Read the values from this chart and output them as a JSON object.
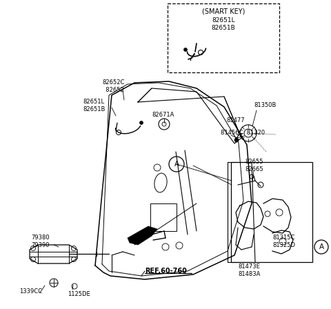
{
  "background_color": "#ffffff",
  "figsize": [
    4.8,
    4.48
  ],
  "dpi": 100,
  "labels": {
    "smart_key_box_title": "(SMART KEY)",
    "smart_key_parts": "82651L\n82651B",
    "part_82652C": "82652C\n82652",
    "part_82651L_main": "82651L\n82651B",
    "part_82671A": "82671A",
    "part_81350B": "81350B",
    "part_81477": "81477",
    "part_81456C_81320": "81456C  81320",
    "part_82655_82665": "82655\n82665",
    "part_A_circle_main": "A",
    "part_A_circle_sub": "A",
    "part_81315C_81325D": "81315C\n81325D",
    "part_81473E_81483A": "81473E\n81483A",
    "part_79380_79390": "79380\n79390",
    "part_1339CC": "1339CC",
    "part_1125DE": "1125DE",
    "ref_60_760": "REF.60-760"
  }
}
